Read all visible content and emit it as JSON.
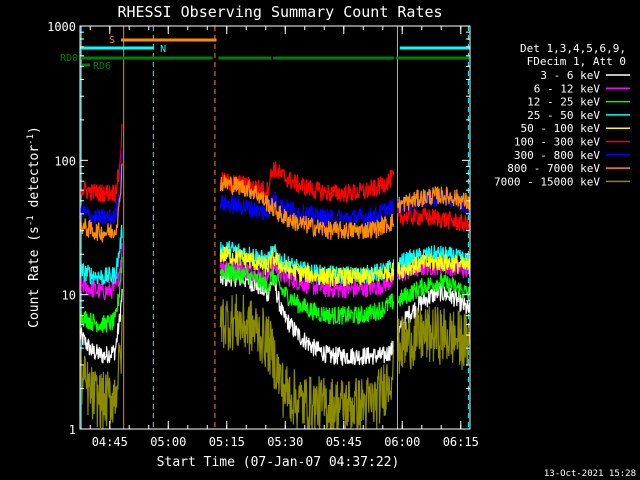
{
  "chart_data": {
    "type": "line",
    "title": "RHESSI Observing Summary Count Rates",
    "xlabel": "Start Time (07-Jan-07 04:37:22)",
    "ylabel": "Count Rate (s⁻¹ detector⁻¹)",
    "ylabel_parts": {
      "main": "Count Rate (s",
      "sup1": "-1",
      "mid": " detector",
      "sup2": "-1",
      "end": ")"
    },
    "yscale": "log",
    "ylim": [
      1,
      1000
    ],
    "xlim_minutes": [
      0,
      100
    ],
    "x_unit": "minutes since 04:37:22",
    "yticks": [
      {
        "v": 1,
        "label": "1"
      },
      {
        "v": 10,
        "label": "10"
      },
      {
        "v": 100,
        "label": "100"
      },
      {
        "v": 1000,
        "label": "1000"
      }
    ],
    "xticks": [
      {
        "t": 7.63,
        "label": "04:45"
      },
      {
        "t": 22.63,
        "label": "05:00"
      },
      {
        "t": 37.63,
        "label": "05:15"
      },
      {
        "t": 52.63,
        "label": "05:30"
      },
      {
        "t": 67.63,
        "label": "05:45"
      },
      {
        "t": 82.63,
        "label": "06:00"
      },
      {
        "t": 97.63,
        "label": "06:15"
      }
    ],
    "legend": {
      "placement": "right",
      "header": [
        "Det 1,3,4,5,6,9,",
        "FDecim 1, Att 0"
      ],
      "entries": [
        {
          "label": "3 - 6 keV",
          "color": "#ffffff"
        },
        {
          "label": "6 - 12 keV",
          "color": "#ff00ff"
        },
        {
          "label": "12 - 25 keV",
          "color": "#00ff00"
        },
        {
          "label": "25 - 50 keV",
          "color": "#00ffff"
        },
        {
          "label": "50 - 100 keV",
          "color": "#ffff00"
        },
        {
          "label": "100 - 300 keV",
          "color": "#ff0000"
        },
        {
          "label": "300 - 800 keV",
          "color": "#0000ff"
        },
        {
          "label": "800 - 7000 keV",
          "color": "#ff8c00"
        },
        {
          "label": "7000 - 15000 keV",
          "color": "#8b8b00"
        }
      ]
    },
    "flag_labels": {
      "S": "S",
      "N": "N",
      "RD0": "RD0",
      "RD6": "RD6"
    },
    "flags": {
      "saa": {
        "label": "S",
        "color": "#ff8c00",
        "from": 10.5,
        "to": 35.0
      },
      "night": {
        "label": "N",
        "color": "#00ffff",
        "segments": [
          [
            0,
            19.0
          ],
          [
            82.0,
            100.0
          ]
        ]
      },
      "decimation": {
        "label": "RD0",
        "color": "#008000",
        "segments": [
          [
            0,
            34.0
          ],
          [
            35.5,
            49.0
          ],
          [
            49.5,
            80.5
          ],
          [
            81.0,
            100.0
          ]
        ]
      },
      "rd6_marker": {
        "label": "RD6",
        "color": "#008000"
      }
    },
    "vlines": [
      {
        "t": 0.3,
        "color": "#00ffff",
        "style": "solid"
      },
      {
        "t": 11.2,
        "color": "#ff8c00",
        "style": "solid"
      },
      {
        "t": 18.8,
        "color": "#00ffff",
        "style": "dashed"
      },
      {
        "t": 34.6,
        "color": "#ff8c00",
        "style": "dashed"
      },
      {
        "t": 81.4,
        "color": "#00ffff",
        "style": "solid"
      },
      {
        "t": 99.6,
        "color": "#00ffff",
        "style": "dashed"
      }
    ],
    "series": [
      {
        "name": "3 - 6 keV",
        "color": "#ffffff",
        "segments": [
          {
            "x": [
              0,
              3,
              6,
              9,
              10,
              10.8
            ],
            "y": [
              5.0,
              3.8,
              3.5,
              3.8,
              6.0,
              10.0
            ]
          },
          {
            "x": [
              36,
              39,
              42,
              45,
              48,
              49.5,
              52,
              56,
              60,
              64,
              68,
              72,
              76,
              78,
              80.5
            ],
            "y": [
              13,
              13.5,
              13,
              12,
              10,
              13,
              7,
              5,
              4,
              3.5,
              3.5,
              3.5,
              3.5,
              3.5,
              4
            ]
          },
          {
            "x": [
              81.5,
              84,
              88,
              92,
              96,
              100
            ],
            "y": [
              5.0,
              7.0,
              9.0,
              10.5,
              9.5,
              7.5
            ]
          }
        ]
      },
      {
        "name": "6 - 12 keV",
        "color": "#ff00ff",
        "segments": [
          {
            "x": [
              0,
              3,
              6,
              9,
              10,
              10.8
            ],
            "y": [
              12,
              11,
              10.5,
              11,
              14,
              22
            ]
          },
          {
            "x": [
              36,
              39,
              42,
              45,
              48,
              49.5,
              52,
              56,
              60,
              64,
              68,
              72,
              76,
              78,
              80.5
            ],
            "y": [
              17,
              16.5,
              15.5,
              14.5,
              13,
              17,
              14,
              12.5,
              11.5,
              11,
              11,
              11,
              11.5,
              12,
              13
            ]
          },
          {
            "x": [
              81.5,
              84,
              88,
              92,
              96,
              100
            ],
            "y": [
              14,
              15,
              16,
              16.5,
              16,
              15
            ]
          }
        ]
      },
      {
        "name": "12 - 25 keV",
        "color": "#00ff00",
        "segments": [
          {
            "x": [
              0,
              3,
              6,
              9,
              10,
              10.8
            ],
            "y": [
              7.0,
              6.3,
              6.0,
              6.3,
              10.0,
              18
            ]
          },
          {
            "x": [
              36,
              39,
              42,
              45,
              48,
              49.5,
              52,
              56,
              60,
              64,
              68,
              72,
              76,
              78,
              80.5
            ],
            "y": [
              15,
              14.5,
              14,
              13,
              11.5,
              14,
              10.5,
              8.5,
              7.5,
              7.0,
              7.0,
              7.0,
              7.5,
              8.0,
              9.0
            ]
          },
          {
            "x": [
              81.5,
              84,
              88,
              92,
              96,
              100
            ],
            "y": [
              9.0,
              10.0,
              11.5,
              12.5,
              11.5,
              10.0
            ]
          }
        ]
      },
      {
        "name": "25 - 50 keV",
        "color": "#00ffff",
        "segments": [
          {
            "x": [
              0,
              3,
              6,
              9,
              10,
              10.8
            ],
            "y": [
              15,
              14,
              13.5,
              14,
              20,
              30
            ]
          },
          {
            "x": [
              36,
              39,
              42,
              45,
              48,
              49.5,
              52,
              56,
              60,
              64,
              68,
              72,
              76,
              78,
              80.5
            ],
            "y": [
              22,
              21.5,
              20.5,
              19.5,
              17.5,
              21,
              17.5,
              15.5,
              14.5,
              14,
              14,
              14,
              14.5,
              15,
              16
            ]
          },
          {
            "x": [
              81.5,
              84,
              88,
              92,
              96,
              100
            ],
            "y": [
              17,
              18,
              19.5,
              20,
              19,
              17.5
            ]
          }
        ]
      },
      {
        "name": "50 - 100 keV",
        "color": "#ffff00",
        "segments": [
          {
            "x": [
              36,
              39,
              42,
              45,
              48,
              49.5,
              52,
              56,
              60,
              64,
              68,
              72,
              76,
              78,
              80.5
            ],
            "y": [
              20,
              19.5,
              18.5,
              17.5,
              16,
              19,
              16,
              14.5,
              14,
              13.5,
              13.5,
              13.5,
              14,
              14.5,
              15
            ]
          },
          {
            "x": [
              81.5,
              84,
              88,
              92,
              96,
              100
            ],
            "y": [
              15,
              16,
              17,
              17.5,
              17,
              16
            ]
          }
        ]
      },
      {
        "name": "100 - 300 keV",
        "color": "#ff0000",
        "segments": [
          {
            "x": [
              0,
              3,
              6,
              9,
              10,
              10.8
            ],
            "y": [
              62,
              58,
              57,
              58,
              80,
              170
            ]
          },
          {
            "x": [
              36,
              39,
              42,
              45,
              48,
              49.5,
              52,
              56,
              60,
              64,
              68,
              72,
              76,
              78,
              80.5
            ],
            "y": [
              70,
              68,
              66,
              63,
              60,
              88,
              76,
              66,
              60,
              57,
              57,
              58,
              62,
              67,
              75
            ]
          },
          {
            "x": [
              81.5,
              84,
              88,
              92,
              96,
              100
            ],
            "y": [
              38,
              38.5,
              38,
              37,
              35,
              33
            ]
          }
        ]
      },
      {
        "name": "300 - 800 keV",
        "color": "#0000ff",
        "segments": [
          {
            "x": [
              0,
              3,
              6,
              9,
              10,
              10.8
            ],
            "y": [
              42,
              38,
              37,
              38,
              55,
              120
            ]
          },
          {
            "x": [
              36,
              39,
              42,
              45,
              48,
              49.5,
              52,
              56,
              60,
              64,
              68,
              72,
              76,
              78,
              80.5
            ],
            "y": [
              48,
              47,
              45,
              43,
              40,
              52,
              45,
              41,
              38.5,
              37,
              37,
              37.5,
              39,
              42,
              45
            ]
          },
          {
            "x": [
              81.5,
              84,
              88,
              92,
              96,
              100
            ],
            "y": [
              45,
              48,
              51,
              53,
              51,
              46
            ]
          }
        ]
      },
      {
        "name": "800 - 7000 keV",
        "color": "#ff8c00",
        "segments": [
          {
            "x": [
              0,
              3,
              6,
              9,
              10,
              10.8
            ],
            "y": [
              33,
              30,
              29,
              30,
              42,
              95
            ]
          },
          {
            "x": [
              36,
              39,
              42,
              45,
              48,
              49.5,
              52,
              56,
              60,
              64,
              68,
              72,
              76,
              78,
              80.5
            ],
            "y": [
              68,
              66,
              63,
              58,
              48,
              44,
              38,
              34,
              32,
              30,
              30,
              30,
              31,
              33,
              35
            ]
          },
          {
            "x": [
              81.5,
              84,
              88,
              92,
              96,
              100
            ],
            "y": [
              46,
              49,
              53,
              55,
              53,
              48
            ]
          }
        ]
      },
      {
        "name": "7000 - 15000 keV",
        "color": "#8b8b00",
        "segments": [
          {
            "x": [
              0,
              3,
              6,
              9,
              10,
              10.8
            ],
            "y": [
              2.5,
              1.8,
              1.6,
              1.8,
              2.8,
              4.5
            ]
          },
          {
            "x": [
              36,
              39,
              42,
              45,
              48,
              49.5,
              52,
              56,
              60,
              64,
              68,
              72,
              76,
              78,
              80.5
            ],
            "y": [
              6.5,
              6.3,
              6.0,
              5.5,
              4.5,
              3.5,
              2.0,
              1.6,
              1.5,
              1.5,
              1.5,
              1.5,
              1.6,
              2.0,
              3.0
            ]
          },
          {
            "x": [
              81.5,
              84,
              88,
              92,
              96,
              100
            ],
            "y": [
              4.0,
              4.5,
              5.0,
              5.0,
              4.8,
              4.3
            ]
          }
        ]
      }
    ]
  },
  "footer": {
    "date": "13-Oct-2021 15:28"
  }
}
